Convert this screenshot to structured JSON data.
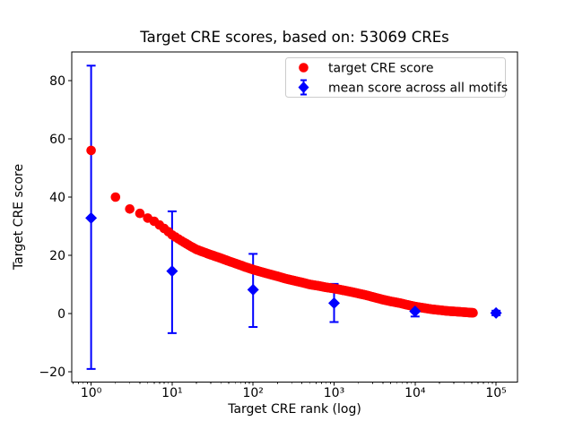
{
  "window": {
    "background": "#ffffff"
  },
  "chart_data": {
    "type": "scatter",
    "title": "Target CRE scores, based on: 53069 CREs",
    "xlabel": "Target CRE rank (log)",
    "ylabel": "Target CRE score",
    "x_scale": "log",
    "xlim_log10": [
      -0.2392,
      5.2648
    ],
    "ylim": [
      -23.5,
      89.8
    ],
    "x_tick_values": [
      1,
      10,
      100,
      1000,
      10000,
      100000
    ],
    "x_tick_labels": [
      "10⁰",
      "10¹",
      "10²",
      "10³",
      "10⁴",
      "10⁵"
    ],
    "y_tick_values": [
      -20,
      0,
      20,
      40,
      60,
      80
    ],
    "y_tick_labels": [
      "−20",
      "0",
      "20",
      "40",
      "60",
      "80"
    ],
    "grid": false,
    "legend": {
      "location": "upper right"
    },
    "series": [
      {
        "name": "target CRE score",
        "marker": "circle",
        "color": "#ff0000",
        "total_points": 53069,
        "sampled_points": [
          [
            1,
            56.0
          ],
          [
            2,
            40.0
          ],
          [
            3,
            35.9
          ],
          [
            4,
            34.4
          ],
          [
            5,
            32.8
          ],
          [
            6,
            31.7
          ],
          [
            7,
            30.4
          ],
          [
            8,
            29.2
          ],
          [
            9,
            28.1
          ],
          [
            10,
            27.0
          ],
          [
            13,
            25.0
          ],
          [
            16,
            23.5
          ],
          [
            20,
            22.0
          ],
          [
            25,
            21.0
          ],
          [
            30,
            20.2
          ],
          [
            40,
            19.0
          ],
          [
            50,
            18.0
          ],
          [
            65,
            16.9
          ],
          [
            80,
            16.0
          ],
          [
            100,
            15.1
          ],
          [
            130,
            14.2
          ],
          [
            160,
            13.5
          ],
          [
            200,
            12.8
          ],
          [
            250,
            12.0
          ],
          [
            320,
            11.3
          ],
          [
            400,
            10.7
          ],
          [
            500,
            10.0
          ],
          [
            650,
            9.5
          ],
          [
            800,
            9.0
          ],
          [
            1000,
            8.6
          ],
          [
            1300,
            8.0
          ],
          [
            1600,
            7.5
          ],
          [
            2000,
            6.9
          ],
          [
            2500,
            6.3
          ],
          [
            3200,
            5.5
          ],
          [
            4000,
            4.8
          ],
          [
            5000,
            4.2
          ],
          [
            6500,
            3.6
          ],
          [
            8000,
            3.0
          ],
          [
            10000,
            2.4
          ],
          [
            13000,
            1.9
          ],
          [
            16000,
            1.5
          ],
          [
            20000,
            1.2
          ],
          [
            25000,
            0.9
          ],
          [
            32000,
            0.7
          ],
          [
            40000,
            0.5
          ],
          [
            53069,
            0.25
          ]
        ]
      },
      {
        "name": "mean score across all motifs",
        "marker": "diamond",
        "color": "#0000ff",
        "points": [
          {
            "x": 1,
            "y": 32.8,
            "err_low": -19.0,
            "err_high": 85.1
          },
          {
            "x": 10,
            "y": 14.6,
            "err_low": -6.7,
            "err_high": 35.1
          },
          {
            "x": 100,
            "y": 8.2,
            "err_low": -4.6,
            "err_high": 20.5
          },
          {
            "x": 1000,
            "y": 3.6,
            "err_low": -2.9,
            "err_high": 10.2
          },
          {
            "x": 10000,
            "y": 0.8,
            "err_low": -1.0,
            "err_high": 2.6
          },
          {
            "x": 100000,
            "y": 0.2,
            "err_low": -0.6,
            "err_high": 1.0
          }
        ]
      }
    ],
    "colors": {
      "target_series": "#ff0000",
      "mean_series": "#0000ff",
      "axis": "#000000",
      "legend_border": "#cccccc"
    }
  }
}
